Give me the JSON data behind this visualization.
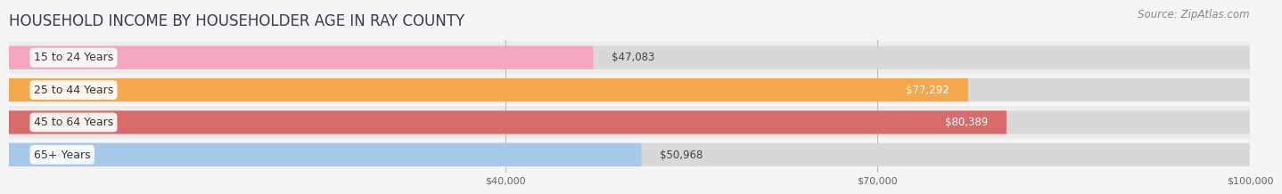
{
  "title": "HOUSEHOLD INCOME BY HOUSEHOLDER AGE IN RAY COUNTY",
  "source": "Source: ZipAtlas.com",
  "categories": [
    "15 to 24 Years",
    "25 to 44 Years",
    "45 to 64 Years",
    "65+ Years"
  ],
  "values": [
    47083,
    77292,
    80389,
    50968
  ],
  "bar_colors": [
    "#f4a7be",
    "#f5a84d",
    "#d96b6b",
    "#a8c8e8"
  ],
  "value_colors": [
    "#555555",
    "#ffffff",
    "#ffffff",
    "#555555"
  ],
  "bar_bg_color": "#e8e8e8",
  "row_bg_colors": [
    "#f0f0f0",
    "#e8e8e8"
  ],
  "background_color": "#f5f5f5",
  "xlim_max": 100000,
  "xticks": [
    40000,
    70000,
    100000
  ],
  "xtick_labels": [
    "$40,000",
    "$70,000",
    "$100,000"
  ],
  "title_fontsize": 12,
  "source_fontsize": 8.5,
  "value_fontsize": 8.5,
  "cat_fontsize": 9
}
